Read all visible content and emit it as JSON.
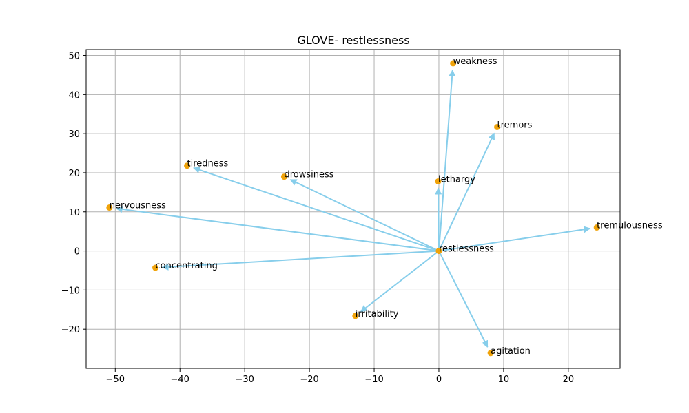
{
  "chart_data": {
    "type": "scatter",
    "title": "GLOVE- restlessness",
    "xlabel": "",
    "ylabel": "",
    "xlim": [
      -54.5,
      28.0
    ],
    "ylim": [
      -30.0,
      51.5
    ],
    "xticks": [
      -50,
      -40,
      -30,
      -20,
      -10,
      0,
      10,
      20
    ],
    "yticks": [
      -20,
      -10,
      0,
      10,
      20,
      30,
      40,
      50
    ],
    "grid": true,
    "point_color": "#f0a30a",
    "arrow_color": "#87ceeb",
    "origin": {
      "label": "restlessness",
      "x": 0,
      "y": 0
    },
    "points": [
      {
        "label": "weakness",
        "x": 2.2,
        "y": 48.0
      },
      {
        "label": "tremors",
        "x": 9.0,
        "y": 31.7
      },
      {
        "label": "tiredness",
        "x": -38.9,
        "y": 21.8
      },
      {
        "label": "drowsiness",
        "x": -23.9,
        "y": 19.0
      },
      {
        "label": "lethargy",
        "x": -0.1,
        "y": 17.8
      },
      {
        "label": "nervousness",
        "x": -50.9,
        "y": 11.1
      },
      {
        "label": "tremulousness",
        "x": 24.4,
        "y": 6.0
      },
      {
        "label": "concentrating",
        "x": -43.8,
        "y": -4.3
      },
      {
        "label": "irritability",
        "x": -12.9,
        "y": -16.6
      },
      {
        "label": "agitation",
        "x": 8.0,
        "y": -26.1
      }
    ]
  }
}
